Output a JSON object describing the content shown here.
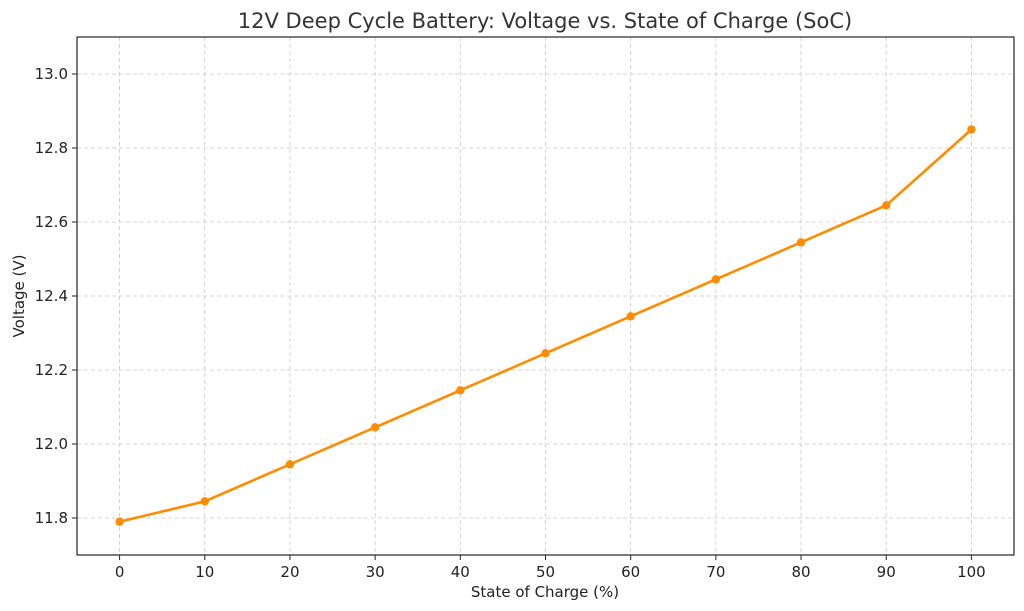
{
  "chart_data": {
    "type": "line",
    "title": "12V Deep Cycle Battery: Voltage vs. State of Charge (SoC)",
    "xlabel": "State of Charge (%)",
    "ylabel": "Voltage (V)",
    "x": [
      0,
      10,
      20,
      30,
      40,
      50,
      60,
      70,
      80,
      90,
      100
    ],
    "series": [
      {
        "values": [
          11.79,
          11.845,
          11.945,
          12.045,
          12.145,
          12.245,
          12.345,
          12.445,
          12.545,
          12.645,
          12.85
        ],
        "color": "#ff8c00"
      }
    ],
    "xlim": [
      -5,
      105
    ],
    "ylim": [
      11.7,
      13.1
    ],
    "xticks": [
      0,
      10,
      20,
      30,
      40,
      50,
      60,
      70,
      80,
      90,
      100
    ],
    "yticks": [
      11.8,
      12.0,
      12.2,
      12.4,
      12.6,
      12.8,
      13.0
    ],
    "ytick_labels": [
      "11.8",
      "12.0",
      "12.2",
      "12.4",
      "12.6",
      "12.8",
      "13.0"
    ],
    "grid": true,
    "legend": false
  }
}
